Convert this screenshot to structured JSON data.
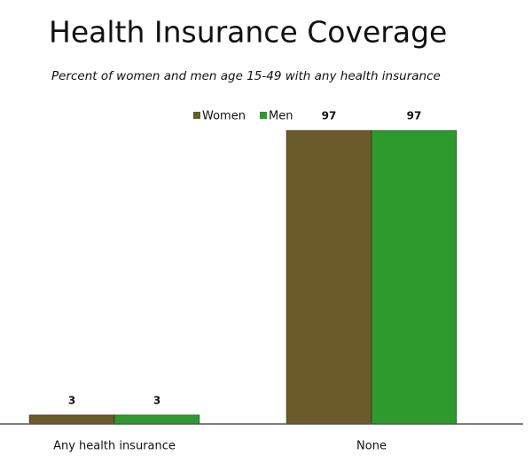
{
  "chart_data": {
    "type": "bar",
    "title": "Health Insurance Coverage",
    "subtitle": "Percent of women and men age 15-49 with any health insurance",
    "categories": [
      "Any health insurance",
      "None"
    ],
    "series": [
      {
        "name": "Women",
        "color": "#6b5a2a",
        "values": [
          3,
          97
        ]
      },
      {
        "name": "Men",
        "color": "#2e9a2e",
        "values": [
          3,
          97
        ]
      }
    ],
    "legend": "top"
  }
}
